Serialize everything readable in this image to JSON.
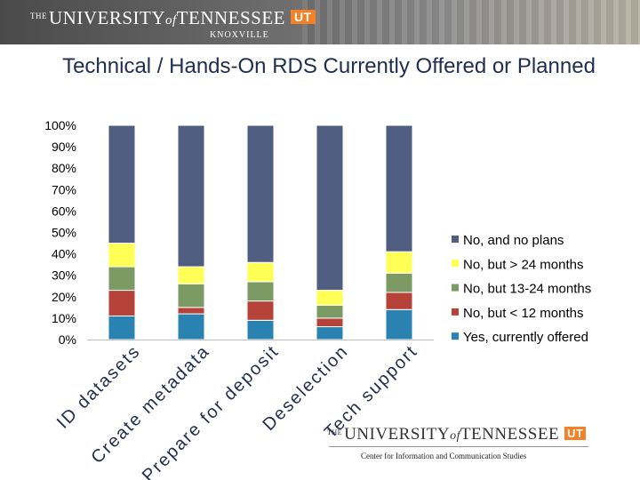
{
  "banner": {
    "the": "THE",
    "university": "UNIVERSITY",
    "of": "of",
    "tennessee": "TENNESSEE",
    "ut": "UT",
    "campus": "KNOXVILLE"
  },
  "footer": {
    "the": "THE",
    "university": "UNIVERSITY",
    "of": "of",
    "tennessee": "TENNESSEE",
    "ut": "UT",
    "subtitle": "Center for Information and Communication Studies"
  },
  "colors": {
    "no_plans": "#4e5d80",
    "over24": "#ffff55",
    "m13_24": "#7b9a64",
    "under12": "#b5433a",
    "yes": "#2a82b1"
  },
  "chart_data": {
    "type": "bar",
    "stacked": true,
    "title": "Technical / Hands-On RDS Currently Offered or Planned",
    "categories": [
      "ID datasets",
      "Create metadata",
      "Prepare for deposit",
      "Deselection",
      "Tech support"
    ],
    "ylim": [
      0,
      100
    ],
    "yticks": [
      "0%",
      "10%",
      "20%",
      "30%",
      "40%",
      "50%",
      "60%",
      "70%",
      "80%",
      "90%",
      "100%"
    ],
    "series": [
      {
        "name": "Yes, currently offered",
        "color": "#2a82b1",
        "values": [
          11,
          12,
          9,
          6,
          14
        ]
      },
      {
        "name": "No, but < 12 months",
        "color": "#b5433a",
        "values": [
          12,
          3,
          9,
          4,
          8
        ]
      },
      {
        "name": "No, but 13-24 months",
        "color": "#7b9a64",
        "values": [
          11,
          11,
          9,
          6,
          9
        ]
      },
      {
        "name": "No, but > 24 months",
        "color": "#ffff55",
        "values": [
          11,
          8,
          9,
          7,
          10
        ]
      },
      {
        "name": "No, and no plans",
        "color": "#4e5d80",
        "values": [
          55,
          66,
          64,
          77,
          59
        ]
      }
    ],
    "legend_order": [
      "No, and no plans",
      "No, but > 24 months",
      "No, but 13-24 months",
      "No, but < 12 months",
      "Yes, currently offered"
    ],
    "legend_position": "right"
  }
}
